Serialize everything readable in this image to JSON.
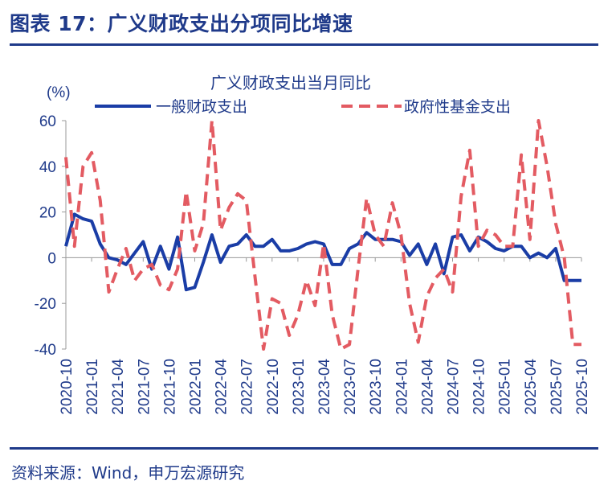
{
  "figure": {
    "title": "图表 17：广义财政支出分项同比增速",
    "source": "资料来源：Wind，申万宏源研究"
  },
  "colors": {
    "accent": "#1f3a8a",
    "series1": "#1a3da6",
    "series2": "#e35b62"
  },
  "chart_data": {
    "type": "line",
    "title": "广义财政支出当月同比",
    "ylabel": "(%)",
    "ylim": [
      -40,
      60
    ],
    "yticks": [
      -40,
      -20,
      0,
      20,
      40,
      60
    ],
    "grid": false,
    "legend": "top",
    "xticks": [
      "2020-10",
      "2021-01",
      "2021-04",
      "2021-07",
      "2021-10",
      "2022-01",
      "2022-04",
      "2022-07",
      "2022-10",
      "2023-01",
      "2023-04",
      "2023-07",
      "2023-10",
      "2024-01",
      "2024-04",
      "2024-07",
      "2024-10",
      "2025-01",
      "2025-04",
      "2025-07",
      "2025-10"
    ],
    "x": [
      "2020-10",
      "2020-11",
      "2020-12",
      "2021-01",
      "2021-02",
      "2021-03",
      "2021-04",
      "2021-05",
      "2021-06",
      "2021-07",
      "2021-08",
      "2021-09",
      "2021-10",
      "2021-11",
      "2021-12",
      "2022-01",
      "2022-02",
      "2022-03",
      "2022-04",
      "2022-05",
      "2022-06",
      "2022-07",
      "2022-08",
      "2022-09",
      "2022-10",
      "2022-11",
      "2022-12",
      "2023-01",
      "2023-02",
      "2023-03",
      "2023-04",
      "2023-05",
      "2023-06",
      "2023-07",
      "2023-08",
      "2023-09",
      "2023-10",
      "2023-11",
      "2023-12",
      "2024-01",
      "2024-02",
      "2024-03",
      "2024-04",
      "2024-05",
      "2024-06",
      "2024-07",
      "2024-08",
      "2024-09",
      "2024-10",
      "2024-11",
      "2024-12",
      "2025-01",
      "2025-02",
      "2025-03",
      "2025-04",
      "2025-05",
      "2025-06",
      "2025-07",
      "2025-08",
      "2025-09",
      "2025-10"
    ],
    "series": [
      {
        "name": "一般财政支出",
        "style": "solid",
        "color": "#1a3da6",
        "values": [
          5,
          19,
          17,
          16,
          6,
          0,
          -1,
          -3,
          2,
          7,
          -5,
          5,
          -5,
          9,
          -14,
          -13,
          -2,
          10,
          -2,
          5,
          6,
          10,
          5,
          5,
          8,
          3,
          3,
          4,
          6,
          7,
          6,
          -3,
          -3,
          4,
          6,
          11,
          8,
          8,
          8,
          7,
          1,
          6,
          -3,
          6,
          -7,
          9,
          10,
          3,
          9,
          7,
          4,
          3,
          5,
          5,
          0,
          2,
          0,
          4,
          -10,
          -10,
          -10
        ],
        "values_note": ""
      },
      {
        "name": "政府性基金支出",
        "style": "dashed",
        "color": "#e35b62",
        "values": [
          44,
          5,
          40,
          46,
          25,
          -15,
          -5,
          4,
          -10,
          -5,
          -3,
          -12,
          -14,
          -5,
          29,
          3,
          15,
          61,
          12,
          22,
          28,
          25,
          -8,
          -40,
          -18,
          -20,
          -34,
          -25,
          -10,
          -21,
          6,
          -25,
          -41,
          -38,
          -5,
          26,
          10,
          5,
          24,
          10,
          -20,
          -37,
          -17,
          -9,
          -5,
          -15,
          27,
          47,
          5,
          12,
          10,
          5,
          5,
          45,
          8,
          60,
          40,
          15,
          0,
          -38,
          -38
        ]
      }
    ]
  }
}
